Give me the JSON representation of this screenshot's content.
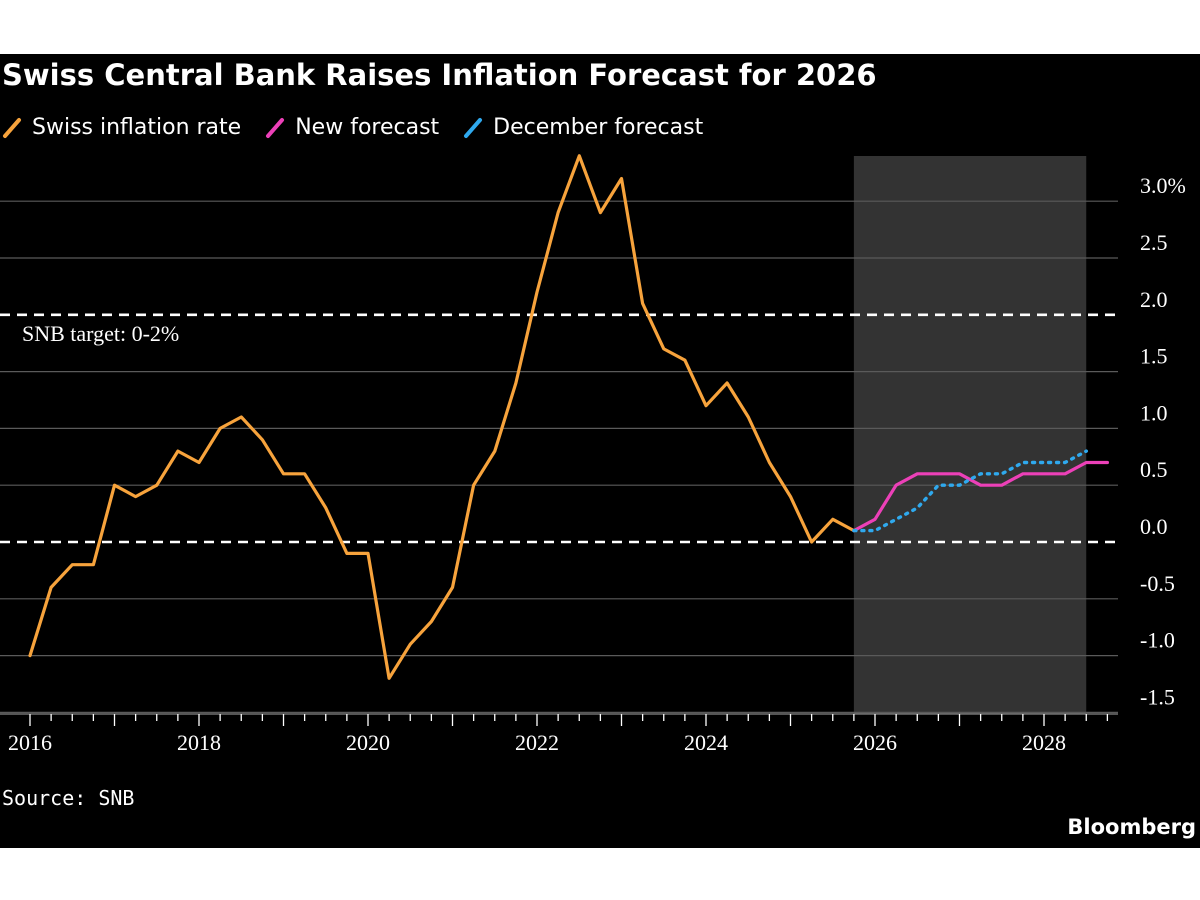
{
  "chart_data": {
    "type": "line",
    "title": "Swiss Central Bank Raises Inflation Forecast for 2026",
    "xlabel": "",
    "ylabel": "",
    "xlim": [
      2016,
      2029
    ],
    "ylim": [
      -1.5,
      3.0
    ],
    "x_ticks": [
      "2016",
      "2018",
      "2020",
      "2022",
      "2024",
      "2026",
      "2028"
    ],
    "y_ticks": [
      {
        "value": 3.0,
        "label": "3.0%"
      },
      {
        "value": 2.5,
        "label": "2.5"
      },
      {
        "value": 2.0,
        "label": "2.0"
      },
      {
        "value": 1.5,
        "label": "1.5"
      },
      {
        "value": 1.0,
        "label": "1.0"
      },
      {
        "value": 0.5,
        "label": "0.5"
      },
      {
        "value": 0.0,
        "label": "0.0"
      },
      {
        "value": -0.5,
        "label": "-0.5"
      },
      {
        "value": -1.0,
        "label": "-1.0"
      },
      {
        "value": -1.5,
        "label": "-1.5"
      }
    ],
    "grid": true,
    "legend_position": "top-left",
    "forecast_region": {
      "start": 2025.75,
      "end": 2028.5,
      "color": "#333333"
    },
    "target_band": {
      "lower": 0,
      "upper": 2,
      "label": "SNB target: 0-2%"
    },
    "series": [
      {
        "name": "Swiss inflation rate",
        "color": "#f7a33c",
        "style": "solid",
        "x": [
          2016.0,
          2016.25,
          2016.5,
          2016.75,
          2017.0,
          2017.25,
          2017.5,
          2017.75,
          2018.0,
          2018.25,
          2018.5,
          2018.75,
          2019.0,
          2019.25,
          2019.5,
          2019.75,
          2020.0,
          2020.25,
          2020.5,
          2020.75,
          2021.0,
          2021.25,
          2021.5,
          2021.75,
          2022.0,
          2022.25,
          2022.5,
          2022.75,
          2023.0,
          2023.25,
          2023.5,
          2023.75,
          2024.0,
          2024.25,
          2024.5,
          2024.75,
          2025.0,
          2025.25,
          2025.5,
          2025.75
        ],
        "values": [
          -1.0,
          -0.4,
          -0.2,
          -0.2,
          0.5,
          0.4,
          0.5,
          0.8,
          0.7,
          1.0,
          1.1,
          0.9,
          0.6,
          0.6,
          0.3,
          -0.1,
          -0.1,
          -1.2,
          -0.9,
          -0.7,
          -0.4,
          0.5,
          0.8,
          1.4,
          2.2,
          2.9,
          3.4,
          2.9,
          3.2,
          2.1,
          1.7,
          1.6,
          1.2,
          1.4,
          1.1,
          0.7,
          0.4,
          0.0,
          0.2,
          0.1
        ]
      },
      {
        "name": "New forecast",
        "color": "#ec40b8",
        "style": "solid",
        "x": [
          2025.75,
          2026.0,
          2026.25,
          2026.5,
          2026.75,
          2027.0,
          2027.25,
          2027.5,
          2027.75,
          2028.0,
          2028.25,
          2028.5,
          2028.75
        ],
        "values": [
          0.1,
          0.2,
          0.5,
          0.6,
          0.6,
          0.6,
          0.5,
          0.5,
          0.6,
          0.6,
          0.6,
          0.7,
          0.7
        ]
      },
      {
        "name": "December forecast",
        "color": "#2fa9ee",
        "style": "dotted",
        "x": [
          2025.75,
          2026.0,
          2026.25,
          2026.5,
          2026.75,
          2027.0,
          2027.25,
          2027.5,
          2027.75,
          2028.0,
          2028.25,
          2028.5
        ],
        "values": [
          0.1,
          0.1,
          0.2,
          0.3,
          0.5,
          0.5,
          0.6,
          0.6,
          0.7,
          0.7,
          0.7,
          0.8
        ]
      }
    ]
  },
  "source_text": "Source: SNB",
  "brand_text": "Bloomberg"
}
